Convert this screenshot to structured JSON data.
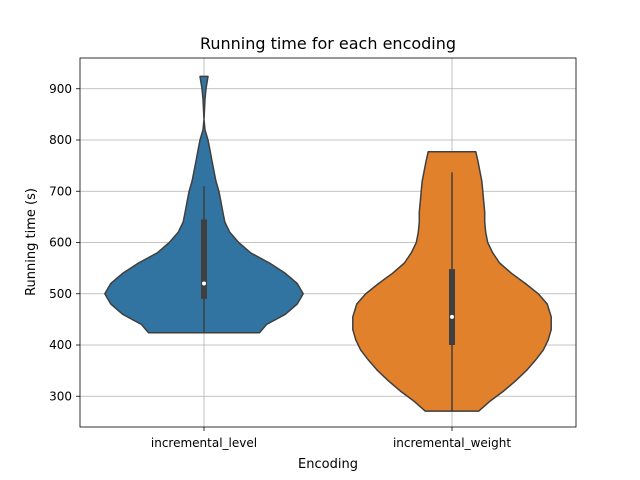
{
  "chart_data": {
    "type": "violin",
    "title": "Running time for each encoding",
    "xlabel": "Encoding",
    "ylabel": "Running time (s)",
    "categories": [
      "incremental_level",
      "incremental_weight"
    ],
    "ylim": [
      240,
      960
    ],
    "yticks": [
      300,
      400,
      500,
      600,
      700,
      800,
      900
    ],
    "grid": true,
    "colors": [
      "#3274a1",
      "#e1812c"
    ],
    "series": [
      {
        "category": "incremental_level",
        "min": 424,
        "max": 924,
        "q1": 490,
        "median": 520,
        "q3": 645,
        "whisker_low": 424,
        "whisker_high": 710,
        "density_profile": [
          [
            424,
            0.56
          ],
          [
            440,
            0.63
          ],
          [
            460,
            0.82
          ],
          [
            480,
            0.94
          ],
          [
            500,
            1.0
          ],
          [
            520,
            0.94
          ],
          [
            540,
            0.82
          ],
          [
            560,
            0.66
          ],
          [
            580,
            0.47
          ],
          [
            600,
            0.35
          ],
          [
            620,
            0.26
          ],
          [
            640,
            0.21
          ],
          [
            660,
            0.19
          ],
          [
            680,
            0.17
          ],
          [
            700,
            0.15
          ],
          [
            720,
            0.12
          ],
          [
            740,
            0.1
          ],
          [
            760,
            0.08
          ],
          [
            780,
            0.06
          ],
          [
            800,
            0.04
          ],
          [
            820,
            0.01
          ],
          [
            840,
            0.0
          ],
          [
            860,
            0.005
          ],
          [
            880,
            0.01
          ],
          [
            900,
            0.02
          ],
          [
            924,
            0.04
          ]
        ]
      },
      {
        "category": "incremental_weight",
        "min": 271,
        "max": 777,
        "q1": 400,
        "median": 455,
        "q3": 548,
        "whisker_low": 271,
        "whisker_high": 737,
        "density_profile": [
          [
            271,
            0.27
          ],
          [
            290,
            0.38
          ],
          [
            310,
            0.52
          ],
          [
            330,
            0.64
          ],
          [
            350,
            0.75
          ],
          [
            370,
            0.84
          ],
          [
            390,
            0.92
          ],
          [
            410,
            0.97
          ],
          [
            430,
            1.0
          ],
          [
            455,
            1.0
          ],
          [
            480,
            0.96
          ],
          [
            500,
            0.87
          ],
          [
            520,
            0.74
          ],
          [
            540,
            0.6
          ],
          [
            560,
            0.48
          ],
          [
            580,
            0.41
          ],
          [
            600,
            0.36
          ],
          [
            620,
            0.34
          ],
          [
            640,
            0.33
          ],
          [
            660,
            0.33
          ],
          [
            680,
            0.32
          ],
          [
            700,
            0.31
          ],
          [
            720,
            0.3
          ],
          [
            740,
            0.28
          ],
          [
            760,
            0.26
          ],
          [
            777,
            0.24
          ]
        ]
      }
    ]
  }
}
